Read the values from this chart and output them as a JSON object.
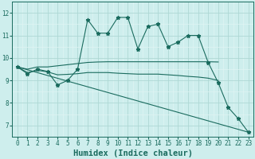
{
  "xlabel": "Humidex (Indice chaleur)",
  "xlim": [
    -0.5,
    23.5
  ],
  "ylim": [
    6.5,
    12.4
  ],
  "bg_color": "#ceeeed",
  "grid_color_major": "#aed8d4",
  "grid_color_minor": "#e0f5f4",
  "line_color": "#1a6b5e",
  "series_main": {
    "x": [
      0,
      1,
      2,
      3,
      4,
      5,
      6,
      7,
      8,
      9,
      10,
      11,
      12,
      13,
      14,
      15,
      16,
      17,
      18,
      19,
      20,
      21,
      22,
      23
    ],
    "y": [
      9.6,
      9.3,
      9.5,
      9.4,
      8.8,
      9.0,
      9.5,
      11.7,
      11.1,
      11.1,
      11.8,
      11.8,
      10.4,
      11.4,
      11.5,
      10.5,
      10.7,
      11.0,
      11.0,
      9.8,
      8.9,
      7.8,
      7.3,
      6.7
    ]
  },
  "series_upper_flat": {
    "x": [
      0,
      1,
      2,
      3,
      4,
      5,
      6,
      7,
      8,
      9,
      10,
      11,
      12,
      13,
      14,
      15,
      16,
      17,
      18,
      19,
      20
    ],
    "y": [
      9.6,
      9.5,
      9.6,
      9.6,
      9.65,
      9.7,
      9.75,
      9.8,
      9.82,
      9.83,
      9.83,
      9.83,
      9.83,
      9.83,
      9.83,
      9.83,
      9.83,
      9.83,
      9.83,
      9.83,
      9.82
    ]
  },
  "series_lower_flat": {
    "x": [
      0,
      1,
      2,
      3,
      4,
      5,
      6,
      7,
      8,
      9,
      10,
      11,
      12,
      13,
      14,
      15,
      16,
      17,
      18,
      19,
      20
    ],
    "y": [
      9.6,
      9.35,
      9.45,
      9.38,
      9.25,
      9.27,
      9.3,
      9.35,
      9.35,
      9.35,
      9.32,
      9.3,
      9.28,
      9.28,
      9.28,
      9.25,
      9.22,
      9.18,
      9.15,
      9.1,
      9.0
    ]
  },
  "series_diagonal": {
    "x": [
      0,
      23
    ],
    "y": [
      9.6,
      6.7
    ]
  },
  "xticks": [
    0,
    1,
    2,
    3,
    4,
    5,
    6,
    7,
    8,
    9,
    10,
    11,
    12,
    13,
    14,
    15,
    16,
    17,
    18,
    19,
    20,
    21,
    22,
    23
  ],
  "yticks": [
    7,
    8,
    9,
    10,
    11,
    12
  ],
  "tick_fontsize": 5.5,
  "xlabel_fontsize": 7.5
}
